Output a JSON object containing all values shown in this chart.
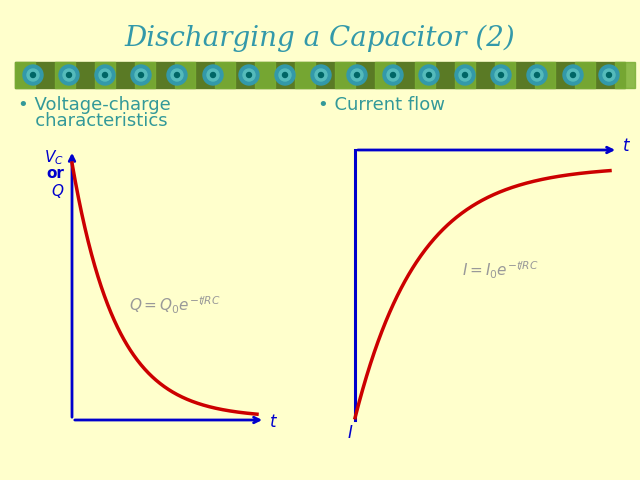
{
  "title": "Discharging a Capacitor (2)",
  "title_color": "#3399AA",
  "title_fontsize": 20,
  "bg_color": "#FFFFCC",
  "bullet_color": "#339999",
  "bullet_fontsize": 13,
  "bullet1_line1": "• Voltage-charge",
  "bullet1_line2": "   characteristics",
  "bullet2": "• Current flow",
  "axis_color": "#0000CC",
  "curve_color": "#CC0000",
  "formula1": "$Q = Q_0 e^{-t\\!/RC}$",
  "formula2": "$I = I_0 e^{-t\\!/RC}$",
  "formula_color": "#999999",
  "formula_fontsize": 11,
  "axis_label_color": "#0000CC",
  "axis_label_fontsize": 12,
  "banner_colors": [
    "#5C7A2E",
    "#8AAF3A",
    "#4A8B4A",
    "#6BAF6B"
  ],
  "banner_icon_color": "#3399AA",
  "banner_icon_inner": "#55BBBB"
}
